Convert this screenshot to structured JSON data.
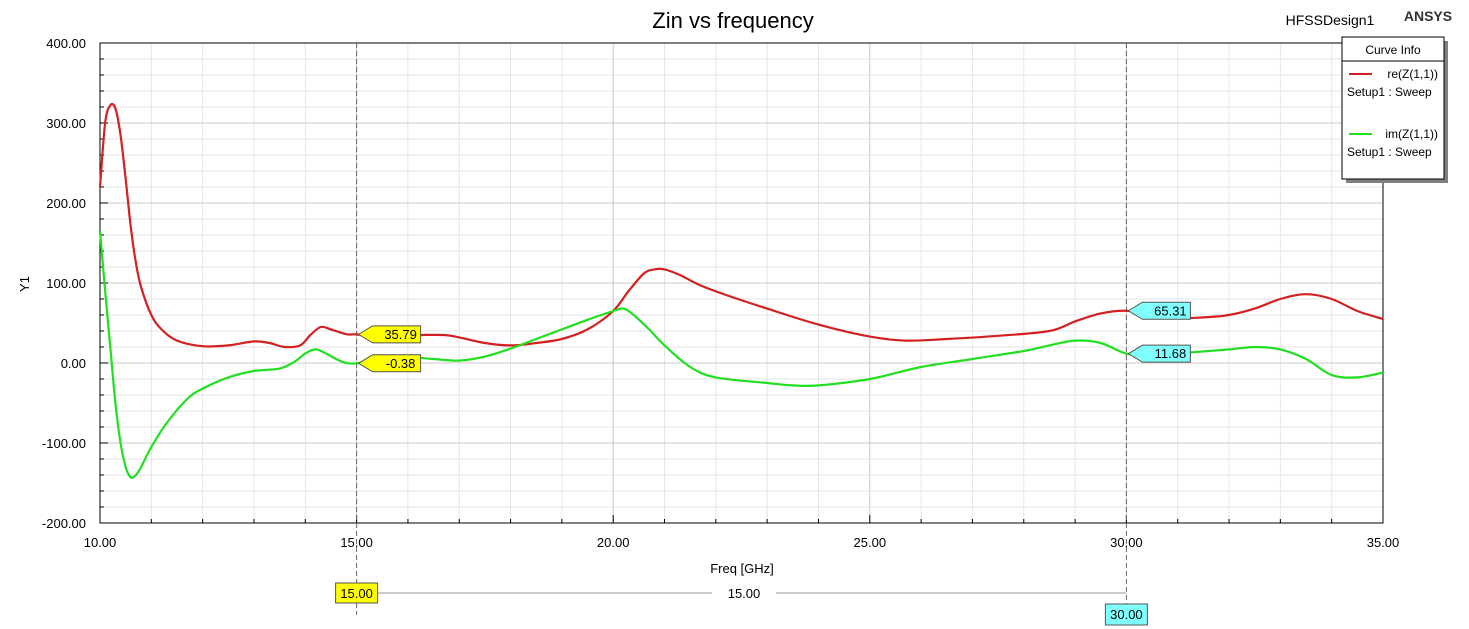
{
  "header": {
    "design_name": "HFSSDesign1",
    "brand": "ANSYS"
  },
  "legend": {
    "title": "Curve Info",
    "entries": [
      {
        "name": "re(Z(1,1))",
        "setup": "Setup1 : Sweep",
        "color": "#d42020"
      },
      {
        "name": "im(Z(1,1))",
        "setup": "Setup1 : Sweep",
        "color": "#20e020"
      }
    ]
  },
  "markers": {
    "delta_label": "15.00",
    "readouts": [
      {
        "x": 15,
        "series": 0,
        "value": "35.79",
        "color": "#ffff00"
      },
      {
        "x": 15,
        "series": 1,
        "value": "-0.38",
        "color": "#ffff00"
      },
      {
        "x": 30,
        "series": 0,
        "value": "65.31",
        "color": "#80ffff"
      },
      {
        "x": 30,
        "series": 1,
        "value": "11.68",
        "color": "#80ffff"
      }
    ],
    "cursors": [
      {
        "x": 15,
        "label": "15.00",
        "color": "#ffff00"
      },
      {
        "x": 30,
        "label": "30.00",
        "color": "#80ffff"
      }
    ]
  },
  "chart_data": {
    "type": "line",
    "title": "Zin vs frequency",
    "xlabel": "Freq [GHz]",
    "ylabel": "Y1",
    "xlim": [
      10,
      35
    ],
    "ylim": [
      -200,
      400
    ],
    "x_ticks": [
      "10.00",
      "15.00",
      "20.00",
      "25.00",
      "30.00",
      "35.00"
    ],
    "y_ticks": [
      "-200.00",
      "-100.00",
      "0.00",
      "100.00",
      "200.00",
      "300.00",
      "400.00"
    ],
    "grid": true,
    "legend_position": "top-right",
    "series": [
      {
        "name": "re(Z(1,1))",
        "color": "#d42020",
        "x": [
          10.0,
          10.1,
          10.2,
          10.3,
          10.4,
          10.5,
          10.6,
          10.7,
          10.8,
          11.0,
          11.2,
          11.5,
          12.0,
          12.5,
          13.0,
          13.3,
          13.6,
          13.9,
          14.1,
          14.3,
          14.5,
          14.8,
          15.0,
          15.3,
          15.7,
          16.2,
          16.7,
          17.0,
          17.5,
          18.0,
          18.5,
          19.0,
          19.5,
          20.0,
          20.3,
          20.6,
          20.8,
          21.0,
          21.3,
          21.7,
          22.2,
          23.0,
          24.0,
          25.0,
          25.7,
          26.5,
          27.5,
          28.5,
          29.0,
          29.5,
          30.0,
          30.5,
          31.0,
          31.5,
          32.0,
          32.5,
          33.0,
          33.5,
          34.0,
          34.5,
          35.0
        ],
        "y": [
          220,
          300,
          322,
          318,
          285,
          230,
          170,
          125,
          95,
          60,
          42,
          28,
          21,
          22,
          27,
          25,
          20,
          22,
          35,
          45,
          42,
          36,
          35.79,
          33,
          35,
          35,
          35,
          32,
          25,
          22,
          25,
          30,
          42,
          65,
          90,
          112,
          117,
          117,
          110,
          97,
          85,
          68,
          48,
          33,
          28,
          30,
          34,
          40,
          52,
          62,
          65.31,
          60,
          56,
          57,
          60,
          68,
          80,
          86,
          80,
          65,
          55
        ]
      },
      {
        "name": "im(Z(1,1))",
        "color": "#20e020",
        "x": [
          10.0,
          10.1,
          10.2,
          10.3,
          10.4,
          10.5,
          10.6,
          10.7,
          10.8,
          11.0,
          11.3,
          11.7,
          12.0,
          12.5,
          13.0,
          13.5,
          13.8,
          14.0,
          14.2,
          14.4,
          14.6,
          14.8,
          15.0,
          15.5,
          16.0,
          16.5,
          17.0,
          17.5,
          18.0,
          18.5,
          19.0,
          19.5,
          20.0,
          20.2,
          20.4,
          20.7,
          21.0,
          21.5,
          22.0,
          23.0,
          23.5,
          24.0,
          25.0,
          26.0,
          27.0,
          28.0,
          28.5,
          29.0,
          29.5,
          30.0,
          30.5,
          31.0,
          32.0,
          32.5,
          33.0,
          33.5,
          34.0,
          34.5,
          35.0
        ],
        "y": [
          165,
          90,
          20,
          -50,
          -100,
          -130,
          -143,
          -140,
          -130,
          -105,
          -75,
          -45,
          -32,
          -18,
          -10,
          -7,
          2,
          12,
          17,
          12,
          5,
          0,
          -0.38,
          3,
          7,
          5,
          3,
          8,
          18,
          30,
          42,
          54,
          65,
          68,
          60,
          42,
          22,
          -5,
          -18,
          -25,
          -28,
          -28,
          -20,
          -5,
          5,
          15,
          22,
          28,
          25,
          11.68,
          10,
          12,
          17,
          20,
          17,
          5,
          -15,
          -18,
          -12
        ]
      }
    ]
  }
}
